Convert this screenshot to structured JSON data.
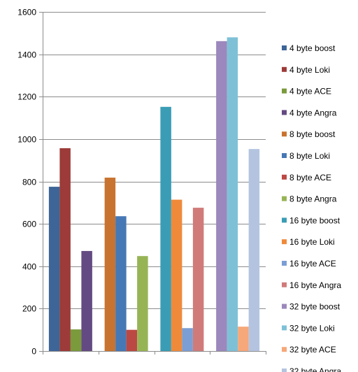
{
  "chart_data": {
    "type": "bar",
    "ylim": [
      0,
      1600
    ],
    "yticks": [
      0,
      200,
      400,
      600,
      800,
      1000,
      1200,
      1400,
      1600
    ],
    "grid": true,
    "legend_position": "right",
    "series": [
      {
        "name": "4 byte boost",
        "value": 775,
        "color": "#3d6597"
      },
      {
        "name": "4 byte Loki",
        "value": 957,
        "color": "#9c3b39"
      },
      {
        "name": "4 byte ACE",
        "value": 102,
        "color": "#7a9a3c"
      },
      {
        "name": "4 byte Angra",
        "value": 472,
        "color": "#644a82"
      },
      {
        "name": "8 byte boost",
        "value": 818,
        "color": "#c8732f"
      },
      {
        "name": "8 byte Loki",
        "value": 636,
        "color": "#4678b5"
      },
      {
        "name": "8 byte ACE",
        "value": 100,
        "color": "#bc4844"
      },
      {
        "name": "8 byte Angra",
        "value": 448,
        "color": "#97b455"
      },
      {
        "name": "16 byte boost",
        "value": 1152,
        "color": "#3a9db5"
      },
      {
        "name": "16 byte Loki",
        "value": 714,
        "color": "#ef8a3b"
      },
      {
        "name": "16 byte ACE",
        "value": 108,
        "color": "#7b9ed4"
      },
      {
        "name": "16 byte Angra",
        "value": 676,
        "color": "#d07b7a"
      },
      {
        "name": "32 byte boost",
        "value": 1462,
        "color": "#9c88bc"
      },
      {
        "name": "32 byte Loki",
        "value": 1480,
        "color": "#7ec1d7"
      },
      {
        "name": "32 byte ACE",
        "value": 115,
        "color": "#f6a87a"
      },
      {
        "name": "32 byte Angra",
        "value": 953,
        "color": "#b4c4e0"
      }
    ]
  }
}
